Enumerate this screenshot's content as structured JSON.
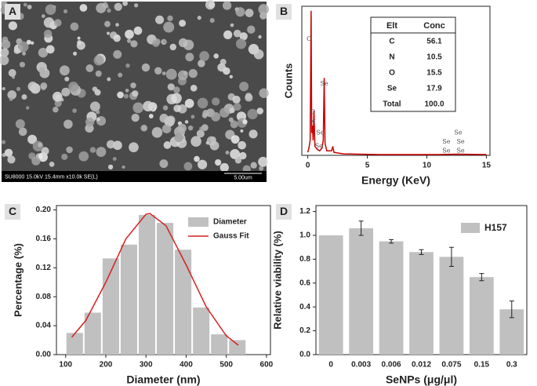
{
  "panel_a": {
    "label": "A",
    "caption": "SU8000 15.0kV 15.4mm x10.0k SE(L)",
    "scale_bar": "5.00um"
  },
  "chart_data": [
    {
      "type": "line",
      "panel_label": "B",
      "x_label": "Energy (KeV)",
      "y_label": "Counts",
      "color": "#cc0000",
      "x": [
        0,
        0.1,
        0.2,
        0.28,
        0.33,
        0.39,
        0.45,
        0.52,
        0.6,
        0.8,
        1.0,
        1.2,
        1.3,
        1.38,
        1.45,
        1.6,
        2.0,
        2.1,
        2.2,
        3,
        6,
        11,
        12.5,
        15
      ],
      "values": [
        0.02,
        0.05,
        0.1,
        0.97,
        0.15,
        0.2,
        0.1,
        0.3,
        0.06,
        0.04,
        0.03,
        0.05,
        0.1,
        0.52,
        0.08,
        0.03,
        0.03,
        0.06,
        0.02,
        0.01,
        0.005,
        0.005,
        0.008,
        0.005
      ],
      "xlim": [
        -0.5,
        15.3
      ],
      "xticks": [
        0,
        5,
        10,
        15
      ],
      "ylim": [
        0,
        1
      ],
      "peak_labels": [
        {
          "text": "C",
          "x": -0.1,
          "y": 0.78
        },
        {
          "text": "Se",
          "x": 1.05,
          "y": 0.48
        },
        {
          "text": "O",
          "x": 0.2,
          "y": 0.29
        },
        {
          "text": "N",
          "x": 0.2,
          "y": 0.22
        },
        {
          "text": "Se",
          "x": 0.7,
          "y": 0.15
        },
        {
          "text": "Se",
          "x": 0.6,
          "y": 0.06
        },
        {
          "text": "Se",
          "x": 12.3,
          "y": 0.15
        },
        {
          "text": "Se",
          "x": 11.3,
          "y": 0.09
        },
        {
          "text": "Se",
          "x": 12.5,
          "y": 0.09
        },
        {
          "text": "Se",
          "x": 11.3,
          "y": 0.03
        },
        {
          "text": "Se",
          "x": 12.5,
          "y": 0.03
        }
      ],
      "table": {
        "columns": [
          "Elt",
          "Conc"
        ],
        "rows": [
          [
            "C",
            "56.1"
          ],
          [
            "N",
            "10.5"
          ],
          [
            "O",
            "15.5"
          ],
          [
            "Se",
            "17.9"
          ],
          [
            "Total",
            "100.0"
          ]
        ]
      }
    },
    {
      "type": "histogram",
      "panel_label": "C",
      "x_label": "Diameter (nm)",
      "y_label": "Percentage (%)",
      "bins": [
        100,
        145,
        190,
        235,
        280,
        325,
        370,
        415,
        460,
        505,
        550
      ],
      "series": [
        {
          "name": "Diameter",
          "color": "#c0c0c0",
          "values": [
            0.03,
            0.058,
            0.133,
            0.152,
            0.193,
            0.182,
            0.145,
            0.065,
            0.028,
            0.02
          ]
        },
        {
          "name": "Gauss Fit",
          "color": "#d42020",
          "x": [
            115,
            150,
            200,
            250,
            300,
            310,
            350,
            400,
            450,
            500,
            530
          ],
          "values": [
            0.024,
            0.047,
            0.1,
            0.16,
            0.194,
            0.195,
            0.178,
            0.124,
            0.066,
            0.026,
            0.013
          ]
        }
      ],
      "xlim": [
        77,
        610
      ],
      "xticks": [
        100,
        200,
        300,
        400,
        500,
        600
      ],
      "ylim": [
        0,
        0.206
      ],
      "yticks": [
        {
          "value": 0,
          "label": "0.00"
        },
        {
          "value": 0.04,
          "label": "0.04"
        },
        {
          "value": 0.08,
          "label": "0.08"
        },
        {
          "value": 0.12,
          "label": "0.12"
        },
        {
          "value": 0.16,
          "label": "0.16"
        },
        {
          "value": 0.2,
          "label": "0.20"
        }
      ]
    },
    {
      "type": "bar",
      "panel_label": "D",
      "x_label": "SeNPs (μg/μl)",
      "y_label": "Relative viability (%)",
      "categories": [
        "0",
        "0.003",
        "0.006",
        "0.012",
        "0.075",
        "0.15",
        "0.3"
      ],
      "series": [
        {
          "name": "H157",
          "color": "#c0c0c0",
          "values": [
            1.0,
            1.06,
            0.95,
            0.86,
            0.82,
            0.65,
            0.38
          ],
          "errors": [
            null,
            0.06,
            0.015,
            0.02,
            0.08,
            0.03,
            0.07
          ]
        }
      ],
      "ylim": [
        0,
        1.25
      ],
      "yticks": [
        {
          "value": 0,
          "label": "0.0"
        },
        {
          "value": 0.2,
          "label": "0.2"
        },
        {
          "value": 0.4,
          "label": "0.4"
        },
        {
          "value": 0.6,
          "label": "0.6"
        },
        {
          "value": 0.8,
          "label": "0.8"
        },
        {
          "value": 1.0,
          "label": "1.0"
        },
        {
          "value": 1.2,
          "label": "1.2"
        }
      ]
    }
  ]
}
